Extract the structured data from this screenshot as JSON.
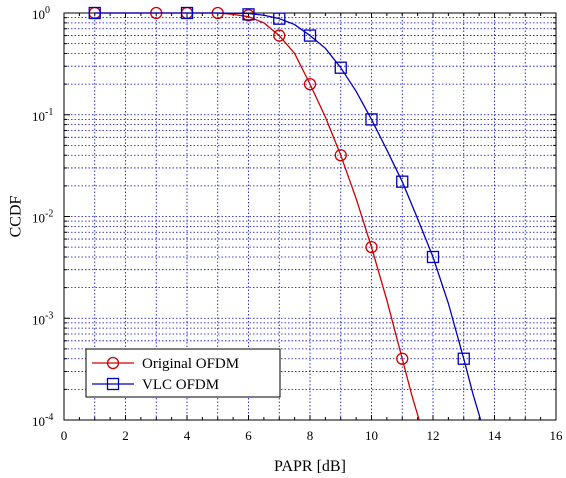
{
  "chart_data": {
    "type": "line",
    "xlabel": "PAPR [dB]",
    "ylabel": "CCDF",
    "xlim": [
      0,
      16
    ],
    "ylim": [
      0.0001,
      1
    ],
    "y_scale": "log",
    "grid": true,
    "legend_position": "bottom-left",
    "x_ticks": [
      "0",
      "2",
      "4",
      "6",
      "8",
      "10",
      "12",
      "14",
      "16"
    ],
    "y_ticks": [
      {
        "base": "10",
        "exp": "0"
      },
      {
        "base": "10",
        "exp": "-1"
      },
      {
        "base": "10",
        "exp": "-2"
      },
      {
        "base": "10",
        "exp": "-3"
      },
      {
        "base": "10",
        "exp": "-4"
      }
    ],
    "series": [
      {
        "name": "Original OFDM",
        "color": "#cc0000",
        "marker": "circle",
        "line": [
          [
            1,
            1
          ],
          [
            3,
            1
          ],
          [
            4,
            1
          ],
          [
            5,
            1
          ],
          [
            5.5,
            0.97
          ],
          [
            6,
            0.92
          ],
          [
            6.5,
            0.8
          ],
          [
            7,
            0.6
          ],
          [
            7.5,
            0.4
          ],
          [
            8,
            0.2
          ],
          [
            8.5,
            0.095
          ],
          [
            9,
            0.04
          ],
          [
            9.5,
            0.015
          ],
          [
            10,
            0.005
          ],
          [
            10.5,
            0.0015
          ],
          [
            11,
            0.0004
          ],
          [
            11.3,
            0.00018
          ],
          [
            11.55,
            0.0001
          ]
        ],
        "markers": [
          [
            1,
            1
          ],
          [
            3,
            1
          ],
          [
            4,
            1
          ],
          [
            5,
            1
          ],
          [
            6,
            0.95
          ],
          [
            7,
            0.6
          ],
          [
            8,
            0.2
          ],
          [
            9,
            0.04
          ],
          [
            10,
            0.005
          ],
          [
            11,
            0.0004
          ]
        ]
      },
      {
        "name": "VLC OFDM",
        "color": "#0000bb",
        "marker": "square",
        "line": [
          [
            1,
            1
          ],
          [
            4,
            1
          ],
          [
            5,
            1
          ],
          [
            6,
            0.99
          ],
          [
            6.5,
            0.95
          ],
          [
            7,
            0.88
          ],
          [
            7.5,
            0.77
          ],
          [
            8,
            0.6
          ],
          [
            8.5,
            0.45
          ],
          [
            9,
            0.29
          ],
          [
            9.5,
            0.17
          ],
          [
            10,
            0.09
          ],
          [
            10.5,
            0.045
          ],
          [
            11,
            0.022
          ],
          [
            11.5,
            0.0095
          ],
          [
            12,
            0.004
          ],
          [
            12.5,
            0.0014
          ],
          [
            13,
            0.0004
          ],
          [
            13.3,
            0.00018
          ],
          [
            13.55,
            0.0001
          ]
        ],
        "markers": [
          [
            1,
            1
          ],
          [
            4,
            1
          ],
          [
            6,
            0.97
          ],
          [
            7,
            0.88
          ],
          [
            8,
            0.6
          ],
          [
            9,
            0.29
          ],
          [
            10,
            0.09
          ],
          [
            11,
            0.022
          ],
          [
            12,
            0.004
          ],
          [
            13,
            0.0004
          ]
        ]
      }
    ]
  }
}
